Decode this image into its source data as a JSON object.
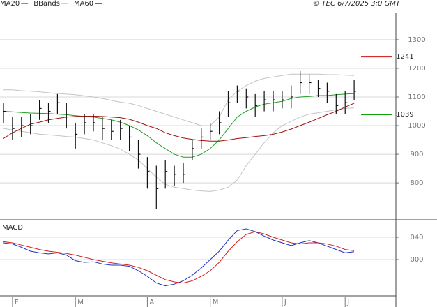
{
  "chart_data": [
    {
      "type": "ohlc",
      "annotation": "© TEC 6/7/2025 3:0 GMT",
      "categories": [
        null,
        "F",
        null,
        null,
        null,
        null,
        null,
        null,
        "M",
        null,
        null,
        null,
        null,
        null,
        null,
        null,
        "A",
        null,
        null,
        null,
        null,
        null,
        null,
        "M",
        null,
        null,
        null,
        null,
        null,
        null,
        null,
        "J",
        null,
        null,
        null,
        null,
        null,
        null,
        "J",
        null
      ],
      "high": [
        1080,
        1030,
        1030,
        1040,
        1090,
        1080,
        1110,
        1080,
        1010,
        1040,
        1040,
        1030,
        1020,
        1020,
        1000,
        950,
        890,
        860,
        880,
        860,
        870,
        950,
        990,
        1010,
        1050,
        1120,
        1140,
        1130,
        1110,
        1120,
        1120,
        1120,
        1140,
        1190,
        1180,
        1160,
        1150,
        1110,
        1120,
        1160
      ],
      "low": [
        1010,
        950,
        960,
        970,
        1020,
        1010,
        1040,
        990,
        920,
        970,
        980,
        950,
        950,
        950,
        910,
        850,
        780,
        710,
        780,
        790,
        800,
        880,
        920,
        950,
        970,
        1030,
        1080,
        1060,
        1030,
        1050,
        1050,
        1060,
        1060,
        1110,
        1110,
        1100,
        1080,
        1040,
        1040,
        1090
      ],
      "close": [
        1050,
        990,
        1000,
        1000,
        1060,
        1050,
        1080,
        1040,
        970,
        1010,
        1010,
        990,
        980,
        990,
        960,
        900,
        840,
        780,
        840,
        830,
        830,
        920,
        960,
        980,
        1010,
        1080,
        1120,
        1100,
        1070,
        1090,
        1090,
        1090,
        1100,
        1150,
        1150,
        1130,
        1120,
        1070,
        1080,
        1120
      ],
      "color": "#111111",
      "series": [
        {
          "name": "MA20",
          "color": "#22a022",
          "values": [
            1050,
            1048,
            1046,
            1044,
            1043,
            1042,
            1040,
            1038,
            1035,
            1032,
            1030,
            1025,
            1020,
            1012,
            1000,
            985,
            965,
            940,
            920,
            900,
            890,
            890,
            900,
            920,
            950,
            990,
            1030,
            1050,
            1065,
            1075,
            1080,
            1085,
            1095,
            1100,
            1102,
            1105,
            1105,
            1108,
            1110,
            1112
          ]
        },
        {
          "name": "BBands",
          "color": "#c4c4c4",
          "values": [
            1125,
            1125,
            1122,
            1120,
            1118,
            1115,
            1112,
            1110,
            1108,
            1104,
            1100,
            1095,
            1088,
            1082,
            1078,
            1070,
            1060,
            1050,
            1040,
            1030,
            1020,
            1010,
            1000,
            1000,
            1030,
            1090,
            1120,
            1140,
            1155,
            1165,
            1170,
            1175,
            1180,
            1180,
            1180,
            1180,
            1178,
            1178,
            1176,
            1175
          ],
          "lower": [
            990,
            985,
            980,
            975,
            970,
            968,
            965,
            962,
            960,
            955,
            950,
            940,
            930,
            918,
            900,
            880,
            850,
            820,
            795,
            785,
            780,
            775,
            772,
            770,
            775,
            785,
            810,
            860,
            900,
            940,
            975,
            1000,
            1015,
            1030,
            1040,
            1045,
            1050,
            1055,
            1060,
            1062
          ]
        },
        {
          "name": "MA60",
          "color": "#a01010",
          "values": [
            955,
            975,
            990,
            1005,
            1012,
            1020,
            1025,
            1030,
            1032,
            1033,
            1033,
            1032,
            1030,
            1028,
            1022,
            1012,
            1000,
            990,
            975,
            965,
            957,
            952,
            948,
            946,
            946,
            950,
            955,
            958,
            962,
            965,
            970,
            978,
            988,
            1000,
            1012,
            1025,
            1038,
            1050,
            1065,
            1078
          ]
        }
      ],
      "markers": [
        {
          "value": 1241,
          "color": "#d01010"
        },
        {
          "value": 1039,
          "color": "#10a010"
        }
      ],
      "ylim": [
        676,
        1390
      ],
      "yticks": [
        800,
        900,
        1000,
        1100,
        1200,
        1300
      ],
      "grid": true
    },
    {
      "type": "line",
      "title": "MACD",
      "series": [
        {
          "color": "#2030c0",
          "values": [
            30,
            28,
            22,
            15,
            12,
            10,
            12,
            8,
            -2,
            -5,
            -4,
            -8,
            -10,
            -10,
            -12,
            -20,
            -30,
            -42,
            -47,
            -44,
            -38,
            -28,
            -15,
            0,
            15,
            35,
            52,
            55,
            50,
            42,
            35,
            30,
            25,
            30,
            34,
            30,
            24,
            18,
            12,
            14
          ]
        },
        {
          "color": "#d02020",
          "values": [
            32,
            30,
            26,
            22,
            18,
            15,
            13,
            11,
            8,
            4,
            0,
            -3,
            -6,
            -8,
            -10,
            -14,
            -20,
            -28,
            -36,
            -40,
            -42,
            -38,
            -30,
            -20,
            -5,
            15,
            32,
            45,
            50,
            46,
            40,
            35,
            30,
            28,
            30,
            30,
            28,
            24,
            18,
            16
          ]
        }
      ],
      "ylim": [
        -63.75,
        67.5
      ],
      "yticks": [
        {
          "value": 0,
          "label": "000"
        },
        {
          "value": 40,
          "label": "040"
        }
      ],
      "grid": true
    }
  ]
}
